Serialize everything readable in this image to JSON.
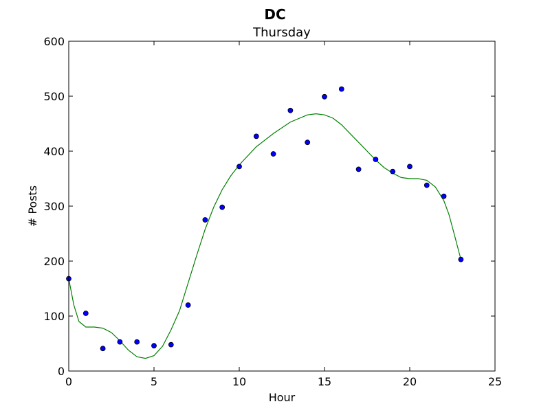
{
  "chart_data": {
    "type": "scatter",
    "suptitle": "DC",
    "title": "Thursday",
    "xlabel": "Hour",
    "ylabel": "# Posts",
    "xlim": [
      0,
      25
    ],
    "ylim": [
      0,
      600
    ],
    "xticks": [
      0,
      5,
      10,
      15,
      20,
      25
    ],
    "yticks": [
      0,
      100,
      200,
      300,
      400,
      500,
      600
    ],
    "grid": false,
    "series": [
      {
        "kind": "scatter",
        "color": "#0000ff",
        "x": [
          0,
          1,
          2,
          3,
          4,
          5,
          6,
          7,
          8,
          9,
          10,
          11,
          12,
          13,
          14,
          15,
          16,
          17,
          18,
          19,
          20,
          21,
          22,
          23
        ],
        "y": [
          168,
          105,
          41,
          53,
          53,
          46,
          48,
          120,
          275,
          298,
          372,
          427,
          395,
          474,
          416,
          499,
          513,
          367,
          385,
          363,
          372,
          338,
          318,
          203
        ]
      },
      {
        "kind": "line",
        "color": "#008000",
        "x": [
          0,
          0.3,
          0.6,
          1,
          1.5,
          2,
          2.5,
          3,
          3.5,
          4,
          4.5,
          5,
          5.5,
          6,
          6.5,
          7,
          7.5,
          8,
          8.5,
          9,
          9.5,
          10,
          11,
          12,
          13,
          14,
          14.5,
          15,
          15.5,
          16,
          16.5,
          17,
          17.5,
          18,
          18.5,
          19,
          19.5,
          20,
          20.5,
          21,
          21.5,
          22,
          22.3,
          22.6,
          23
        ],
        "y": [
          168,
          120,
          90,
          80,
          80,
          78,
          70,
          55,
          38,
          26,
          23,
          28,
          45,
          75,
          110,
          160,
          210,
          258,
          298,
          330,
          355,
          375,
          408,
          432,
          453,
          466,
          468,
          466,
          460,
          448,
          432,
          416,
          400,
          384,
          370,
          360,
          352,
          350,
          350,
          347,
          335,
          310,
          285,
          250,
          203
        ]
      }
    ]
  }
}
